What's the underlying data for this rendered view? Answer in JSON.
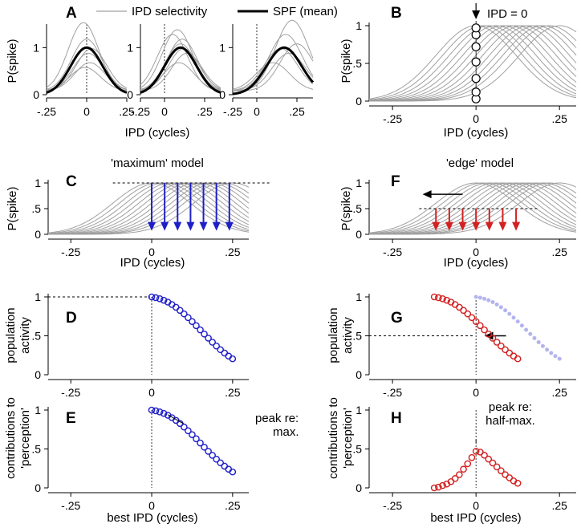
{
  "legend": {
    "gray": "IPD selectivity",
    "black": "SPF (mean)"
  },
  "common": {
    "xlabel": "IPD (cycles)",
    "ylabel": "P(spike)",
    "best_xlabel": "best IPD (cycles)",
    "ylabel_activity_1": "population",
    "ylabel_activity_2": "activity",
    "ylabel_contrib_1": "contributions to",
    "ylabel_contrib_2": "'perception'",
    "xticks": [
      {
        "v": -0.25,
        "t": "-.25"
      },
      {
        "v": 0,
        "t": "0"
      },
      {
        "v": 0.25,
        "t": ".25"
      }
    ],
    "yticks": [
      {
        "v": 0,
        "t": "0"
      },
      {
        "v": 0.5,
        "t": ".5"
      },
      {
        "v": 1,
        "t": "1"
      }
    ]
  },
  "colors": {
    "blue": "#1f1fc8",
    "red": "#d42020",
    "lightblue": "#b4b4ee",
    "gray": "#a0a0a0",
    "black": "#000000"
  },
  "chart_data": [
    {
      "panel": "A",
      "type": "line",
      "letter": "A",
      "title": "",
      "xlabel": "IPD (cycles)",
      "ylabel": "P(spike)",
      "subplots": [
        {
          "xlim": [
            -0.25,
            0.25
          ],
          "ylim": [
            0,
            1.5
          ],
          "spf_center": 0.0,
          "spf_width": 0.1,
          "gray_centers": [
            -0.02,
            0.0,
            0.01,
            0.02,
            0.03,
            -0.01
          ],
          "gray_peaks": [
            1.45,
            1.1,
            0.8,
            0.6,
            0.9,
            0.5
          ]
        },
        {
          "xlim": [
            -0.15,
            0.35
          ],
          "ylim": [
            0,
            1.5
          ],
          "spf_center": 0.1,
          "spf_width": 0.1,
          "gray_centers": [
            0.05,
            0.08,
            0.1,
            0.12,
            0.14,
            0.09,
            0.11
          ],
          "gray_peaks": [
            1.2,
            1.3,
            1.0,
            0.9,
            0.8,
            0.6,
            1.1
          ]
        },
        {
          "xlim": [
            -0.15,
            0.35
          ],
          "ylim": [
            0,
            1.5
          ],
          "spf_center": 0.17,
          "spf_width": 0.11,
          "gray_centers": [
            0.1,
            0.15,
            0.18,
            0.22,
            0.25,
            0.2
          ],
          "gray_peaks": [
            0.6,
            0.9,
            1.2,
            1.5,
            1.0,
            0.8
          ]
        }
      ]
    },
    {
      "panel": "B",
      "type": "line",
      "letter": "B",
      "annotation": "IPD = 0",
      "xlabel": "IPD (cycles)",
      "ylabel": "P(spike)",
      "xlim": [
        -0.32,
        0.3
      ],
      "ylim": [
        0,
        1
      ],
      "curve_centers": [
        0,
        0.02,
        0.04,
        0.06,
        0.08,
        0.1,
        0.12,
        0.14,
        0.16,
        0.18,
        0.2,
        0.22,
        0.25
      ],
      "curve_width": 0.12,
      "circles_y": [
        0.03,
        0.12,
        0.3,
        0.52,
        0.72,
        0.88,
        0.97
      ]
    },
    {
      "panel": "C",
      "type": "line",
      "letter": "C",
      "title": "'maximum' model",
      "xlabel": "IPD (cycles)",
      "ylabel": "P(spike)",
      "xlim": [
        -0.32,
        0.3
      ],
      "ylim": [
        0,
        1
      ],
      "curve_centers": [
        0,
        0.02,
        0.04,
        0.06,
        0.08,
        0.1,
        0.12,
        0.14,
        0.16,
        0.18,
        0.2,
        0.22,
        0.25
      ],
      "curve_width": 0.12,
      "reference_line_y": 1,
      "arrows": {
        "x": [
          0,
          0.04,
          0.08,
          0.12,
          0.16,
          0.2,
          0.24
        ],
        "from": 1,
        "to": 0.1,
        "color": "blue"
      }
    },
    {
      "panel": "F",
      "type": "line",
      "letter": "F",
      "title": "'edge' model",
      "xlabel": "IPD (cycles)",
      "ylabel": "P(spike)",
      "xlim": [
        -0.32,
        0.3
      ],
      "ylim": [
        0,
        1
      ],
      "curve_centers": [
        0,
        0.02,
        0.04,
        0.06,
        0.08,
        0.1,
        0.12,
        0.14,
        0.16,
        0.18,
        0.2,
        0.22,
        0.25
      ],
      "curve_width": 0.12,
      "reference_line_y": 0.5,
      "arrows": {
        "x": [
          -0.12,
          -0.08,
          -0.04,
          0,
          0.04,
          0.08,
          0.12
        ],
        "from": 0.5,
        "to": 0.1,
        "color": "red"
      },
      "shift_arrow": {
        "from": -0.04,
        "to": -0.16,
        "y": 0.78
      }
    },
    {
      "panel": "D",
      "type": "scatter",
      "letter": "D",
      "xlabel": "",
      "ylabel": "population activity",
      "xlim": [
        -0.32,
        0.3
      ],
      "ylim": [
        0,
        1
      ],
      "x": [
        0,
        0.0125,
        0.025,
        0.0375,
        0.05,
        0.0625,
        0.075,
        0.0875,
        0.1,
        0.1125,
        0.125,
        0.1375,
        0.15,
        0.1625,
        0.175,
        0.1875,
        0.2,
        0.2125,
        0.225,
        0.2375,
        0.25
      ],
      "y": [
        1.0,
        0.99,
        0.976,
        0.957,
        0.933,
        0.902,
        0.867,
        0.827,
        0.782,
        0.734,
        0.684,
        0.631,
        0.577,
        0.523,
        0.47,
        0.418,
        0.369,
        0.322,
        0.279,
        0.24,
        0.205
      ],
      "reference_line_y": 1,
      "color": "blue"
    },
    {
      "panel": "E",
      "type": "scatter",
      "letter": "E",
      "xlabel": "best IPD (cycles)",
      "ylabel": "contributions to 'perception'",
      "xlim": [
        -0.32,
        0.3
      ],
      "ylim": [
        0,
        1
      ],
      "x": [
        0,
        0.0125,
        0.025,
        0.0375,
        0.05,
        0.0625,
        0.075,
        0.0875,
        0.1,
        0.1125,
        0.125,
        0.1375,
        0.15,
        0.1625,
        0.175,
        0.1875,
        0.2,
        0.2125,
        0.225,
        0.2375,
        0.25
      ],
      "y": [
        1.0,
        0.99,
        0.976,
        0.957,
        0.933,
        0.902,
        0.867,
        0.827,
        0.782,
        0.734,
        0.684,
        0.631,
        0.577,
        0.523,
        0.47,
        0.418,
        0.369,
        0.322,
        0.279,
        0.24,
        0.205
      ],
      "annotation_1": "peak re:",
      "annotation_2": "max.",
      "color": "blue"
    },
    {
      "panel": "G",
      "type": "scatter",
      "letter": "G",
      "xlabel": "",
      "ylabel": "population activity",
      "xlim": [
        -0.32,
        0.3
      ],
      "ylim": [
        0,
        1
      ],
      "x": [
        -0.125,
        -0.1125,
        -0.1,
        -0.0875,
        -0.075,
        -0.0625,
        -0.05,
        -0.0375,
        -0.025,
        -0.0125,
        0,
        0.0125,
        0.025,
        0.0375,
        0.05,
        0.0625,
        0.075,
        0.0875,
        0.1,
        0.1125,
        0.125
      ],
      "y": [
        1.0,
        0.99,
        0.976,
        0.957,
        0.933,
        0.902,
        0.867,
        0.827,
        0.782,
        0.734,
        0.684,
        0.631,
        0.577,
        0.523,
        0.47,
        0.418,
        0.369,
        0.322,
        0.279,
        0.24,
        0.205
      ],
      "ghost_x": [
        0,
        0.0125,
        0.025,
        0.0375,
        0.05,
        0.0625,
        0.075,
        0.0875,
        0.1,
        0.1125,
        0.125,
        0.1375,
        0.15,
        0.1625,
        0.175,
        0.1875,
        0.2,
        0.2125,
        0.225,
        0.2375,
        0.25
      ],
      "reference_line_y": 0.5,
      "color": "red",
      "ghost_color": "lightblue"
    },
    {
      "panel": "H",
      "type": "scatter",
      "letter": "H",
      "xlabel": "best IPD (cycles)",
      "ylabel": "contributions to 'perception'",
      "xlim": [
        -0.32,
        0.3
      ],
      "ylim": [
        0,
        1
      ],
      "x": [
        -0.125,
        -0.1125,
        -0.1,
        -0.0875,
        -0.075,
        -0.0625,
        -0.05,
        -0.0375,
        -0.025,
        -0.0125,
        0,
        0.0125,
        0.025,
        0.0375,
        0.05,
        0.0625,
        0.075,
        0.0875,
        0.1,
        0.1125,
        0.125
      ],
      "y": [
        0.0,
        0.01,
        0.03,
        0.05,
        0.08,
        0.12,
        0.17,
        0.24,
        0.31,
        0.39,
        0.47,
        0.46,
        0.42,
        0.37,
        0.32,
        0.27,
        0.22,
        0.17,
        0.13,
        0.09,
        0.06
      ],
      "annotation_1": "peak re:",
      "annotation_2": "half-max.",
      "color": "red"
    }
  ]
}
